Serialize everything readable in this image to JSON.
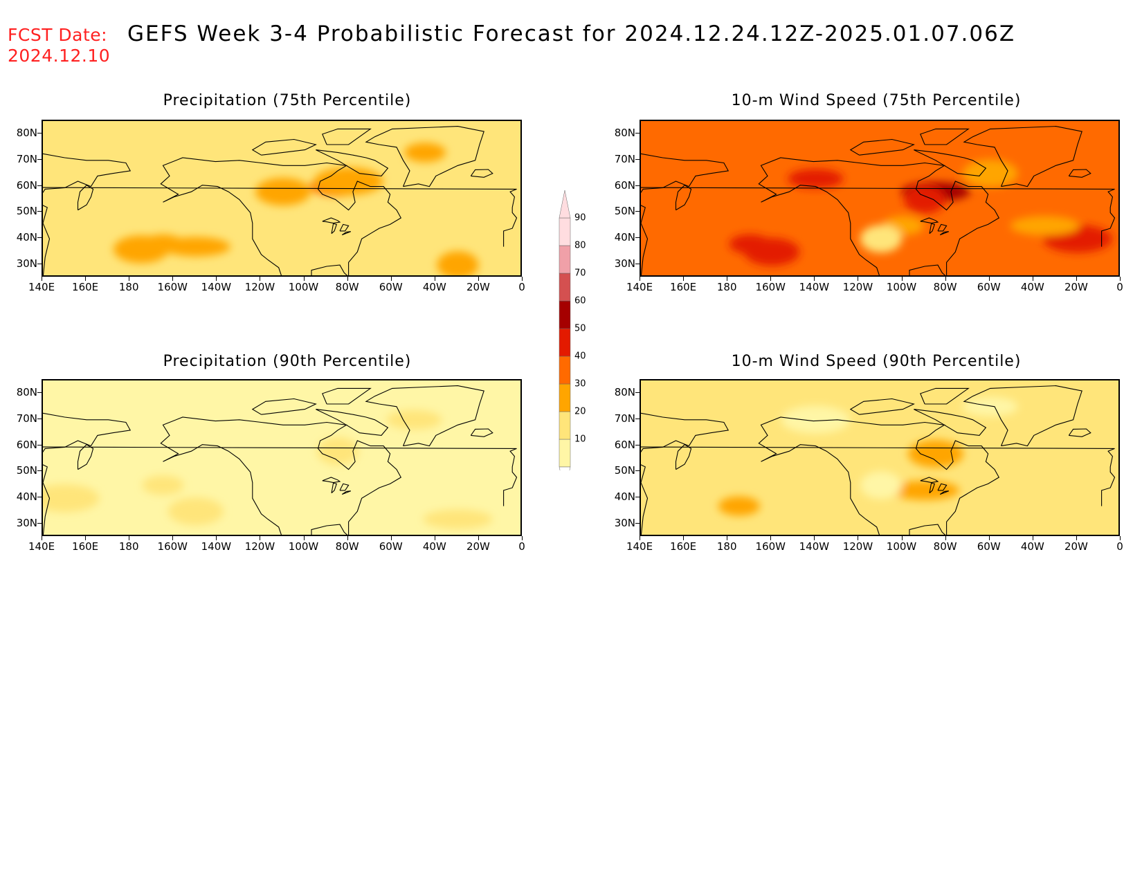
{
  "header": {
    "fcst_label": "FCST Date:",
    "fcst_date": "2024.12.10",
    "title": "GEFS Week 3-4 Probabilistic Forecast for 2024.12.24.12Z-2025.01.07.06Z"
  },
  "panels": [
    {
      "id": "precip-75",
      "title": "Precipitation (75th Percentile)",
      "base_category": 20,
      "hotspots": [
        {
          "lon": -165,
          "lat": 38,
          "cat": 30
        },
        {
          "lon": -175,
          "lat": 36,
          "cat": 30
        },
        {
          "lon": -150,
          "lat": 37,
          "cat": 30
        },
        {
          "lon": -30,
          "lat": 30,
          "cat": 30
        },
        {
          "lon": -85,
          "lat": 60,
          "cat": 40
        },
        {
          "lon": -80,
          "lat": 62,
          "cat": 30
        },
        {
          "lon": -45,
          "lat": 73,
          "cat": 30
        },
        {
          "lon": -110,
          "lat": 58,
          "cat": 30
        }
      ]
    },
    {
      "id": "precip-90",
      "title": "Precipitation (90th Percentile)",
      "base_category": 10,
      "hotspots": [
        {
          "lon": -165,
          "lat": 45,
          "cat": 20
        },
        {
          "lon": -150,
          "lat": 35,
          "cat": 20
        },
        {
          "lon": -30,
          "lat": 32,
          "cat": 20
        },
        {
          "lon": -85,
          "lat": 58,
          "cat": 20
        },
        {
          "lon": -50,
          "lat": 70,
          "cat": 20
        },
        {
          "lon": 150,
          "lat": 40,
          "cat": 20
        }
      ]
    },
    {
      "id": "wind-75",
      "title": "10-m Wind Speed (75th Percentile)",
      "base_category": 40,
      "hotspots": [
        {
          "lon": -170,
          "lat": 38,
          "cat": 50
        },
        {
          "lon": -160,
          "lat": 35,
          "cat": 50
        },
        {
          "lon": -85,
          "lat": 58,
          "cat": 60
        },
        {
          "lon": -90,
          "lat": 55,
          "cat": 50
        },
        {
          "lon": -140,
          "lat": 63,
          "cat": 50
        },
        {
          "lon": -20,
          "lat": 40,
          "cat": 50
        },
        {
          "lon": -100,
          "lat": 45,
          "cat": 30
        },
        {
          "lon": -60,
          "lat": 65,
          "cat": 30
        },
        {
          "lon": -35,
          "lat": 45,
          "cat": 30
        },
        {
          "lon": -110,
          "lat": 40,
          "cat": 20
        }
      ]
    },
    {
      "id": "wind-90",
      "title": "10-m Wind Speed (90th Percentile)",
      "base_category": 20,
      "hotspots": [
        {
          "lon": -175,
          "lat": 37,
          "cat": 30
        },
        {
          "lon": -85,
          "lat": 57,
          "cat": 30
        },
        {
          "lon": -90,
          "lat": 43,
          "cat": 30
        },
        {
          "lon": -110,
          "lat": 45,
          "cat": 10
        },
        {
          "lon": -60,
          "lat": 75,
          "cat": 10
        },
        {
          "lon": -140,
          "lat": 70,
          "cat": 10
        }
      ]
    }
  ],
  "axes": {
    "lon_range": [
      140,
      360
    ],
    "lat_range": [
      25,
      85
    ],
    "x_ticks": [
      {
        "label": "140E",
        "lon": 140
      },
      {
        "label": "160E",
        "lon": 160
      },
      {
        "label": "180",
        "lon": 180
      },
      {
        "label": "160W",
        "lon": 200
      },
      {
        "label": "140W",
        "lon": 220
      },
      {
        "label": "120W",
        "lon": 240
      },
      {
        "label": "100W",
        "lon": 260
      },
      {
        "label": "80W",
        "lon": 280
      },
      {
        "label": "60W",
        "lon": 300
      },
      {
        "label": "40W",
        "lon": 320
      },
      {
        "label": "20W",
        "lon": 340
      },
      {
        "label": "0",
        "lon": 360
      }
    ],
    "y_ticks": [
      {
        "label": "80N",
        "lat": 80
      },
      {
        "label": "70N",
        "lat": 70
      },
      {
        "label": "60N",
        "lat": 60
      },
      {
        "label": "50N",
        "lat": 50
      },
      {
        "label": "40N",
        "lat": 40
      },
      {
        "label": "30N",
        "lat": 30
      }
    ]
  },
  "colorbar": {
    "labels": [
      "90",
      "80",
      "70",
      "60",
      "50",
      "40",
      "30",
      "20",
      "10"
    ],
    "colors": {
      "10": "#fff6a6",
      "20": "#ffe57a",
      "30": "#ffa500",
      "40": "#ff6a00",
      "50": "#e31a00",
      "60": "#a50000",
      "70": "#d45050",
      "80": "#f0a0a8",
      "90": "#ffdde0"
    }
  }
}
